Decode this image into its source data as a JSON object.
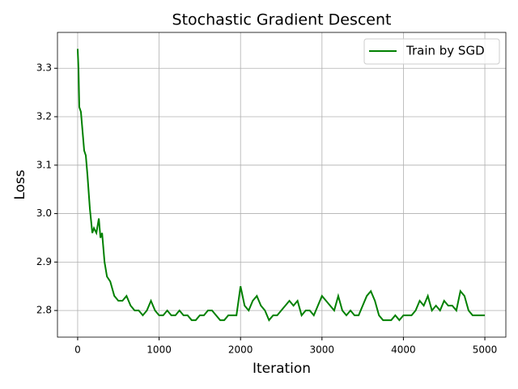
{
  "chart_data": {
    "type": "line",
    "title": "Stochastic Gradient Descent",
    "x_label": "Iteration",
    "y_label": "Loss",
    "x": [
      0,
      10,
      20,
      40,
      60,
      80,
      100,
      120,
      150,
      180,
      200,
      230,
      260,
      280,
      300,
      330,
      360,
      400,
      450,
      500,
      550,
      600,
      650,
      700,
      750,
      800,
      850,
      900,
      950,
      1000,
      1050,
      1100,
      1150,
      1200,
      1250,
      1300,
      1350,
      1400,
      1450,
      1500,
      1550,
      1600,
      1650,
      1700,
      1750,
      1800,
      1850,
      1900,
      1950,
      2000,
      2050,
      2100,
      2150,
      2200,
      2250,
      2300,
      2350,
      2400,
      2450,
      2500,
      2550,
      2600,
      2650,
      2700,
      2750,
      2800,
      2850,
      2900,
      2950,
      3000,
      3050,
      3100,
      3150,
      3200,
      3250,
      3300,
      3350,
      3400,
      3450,
      3500,
      3550,
      3600,
      3650,
      3700,
      3750,
      3800,
      3850,
      3900,
      3950,
      4000,
      4050,
      4100,
      4150,
      4200,
      4250,
      4300,
      4350,
      4400,
      4450,
      4500,
      4550,
      4600,
      4650,
      4700,
      4750,
      4800,
      4850,
      4900,
      4950,
      5000
    ],
    "series": [
      {
        "name": "Train by SGD",
        "color": "#008000",
        "values": [
          3.34,
          3.3,
          3.22,
          3.21,
          3.17,
          3.13,
          3.12,
          3.08,
          3.01,
          2.96,
          2.97,
          2.96,
          2.99,
          2.95,
          2.96,
          2.9,
          2.87,
          2.86,
          2.83,
          2.82,
          2.82,
          2.83,
          2.81,
          2.8,
          2.8,
          2.79,
          2.8,
          2.82,
          2.8,
          2.79,
          2.79,
          2.8,
          2.79,
          2.79,
          2.8,
          2.79,
          2.79,
          2.78,
          2.78,
          2.79,
          2.79,
          2.8,
          2.8,
          2.79,
          2.78,
          2.78,
          2.79,
          2.79,
          2.79,
          2.85,
          2.81,
          2.8,
          2.82,
          2.83,
          2.81,
          2.8,
          2.78,
          2.79,
          2.79,
          2.8,
          2.81,
          2.82,
          2.81,
          2.82,
          2.79,
          2.8,
          2.8,
          2.79,
          2.81,
          2.83,
          2.82,
          2.81,
          2.8,
          2.83,
          2.8,
          2.79,
          2.8,
          2.79,
          2.79,
          2.81,
          2.83,
          2.84,
          2.82,
          2.79,
          2.78,
          2.78,
          2.78,
          2.79,
          2.78,
          2.79,
          2.79,
          2.79,
          2.8,
          2.82,
          2.81,
          2.83,
          2.8,
          2.81,
          2.8,
          2.82,
          2.81,
          2.81,
          2.8,
          2.84,
          2.83,
          2.8,
          2.79,
          2.79,
          2.79,
          2.79
        ]
      }
    ],
    "xlim": [
      -248,
      5258
    ],
    "ylim": [
      2.745,
      3.374
    ],
    "xticks": [
      0,
      1000,
      2000,
      3000,
      4000,
      5000
    ],
    "yticks": [
      2.8,
      2.9,
      {
        "value": 3,
        "label": "3.0"
      },
      3.1,
      3.2,
      3.3
    ],
    "grid": true,
    "legend": "upper right"
  }
}
